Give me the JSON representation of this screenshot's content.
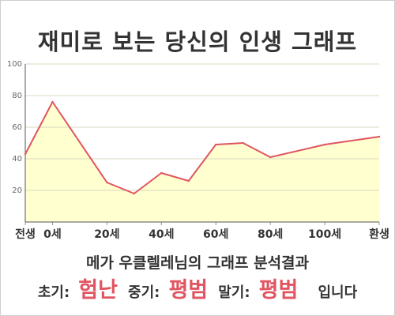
{
  "title": "재미로 보는 당신의 인생 그래프",
  "chart_data": {
    "type": "area",
    "x": [
      -10,
      0,
      20,
      30,
      40,
      50,
      60,
      70,
      80,
      100,
      120
    ],
    "x_tick_labels": [
      {
        "x": -10,
        "label": "전생"
      },
      {
        "x": 0,
        "label": "0세"
      },
      {
        "x": 20,
        "label": "20세"
      },
      {
        "x": 40,
        "label": "40세"
      },
      {
        "x": 60,
        "label": "60세"
      },
      {
        "x": 80,
        "label": "80세"
      },
      {
        "x": 100,
        "label": "100세"
      },
      {
        "x": 120,
        "label": "환생"
      }
    ],
    "values": [
      43,
      76,
      25,
      18,
      31,
      26,
      49,
      50,
      41,
      49,
      54
    ],
    "ylim": [
      0,
      100
    ],
    "yticks": [
      20,
      40,
      60,
      80,
      100
    ],
    "xlim": [
      -10,
      120
    ],
    "grid": true,
    "colors": {
      "line": "#e05561",
      "fill": "#ffffc8",
      "grid": "#d9d9c0"
    }
  },
  "subtitle": "메가 우클렐레님의 그래프 분석결과",
  "result": {
    "early_label": "초기:",
    "early_value": "험난",
    "middle_label": "중기:",
    "middle_value": "평범",
    "late_label": "말기:",
    "late_value": "평범",
    "ending": "입니다"
  }
}
